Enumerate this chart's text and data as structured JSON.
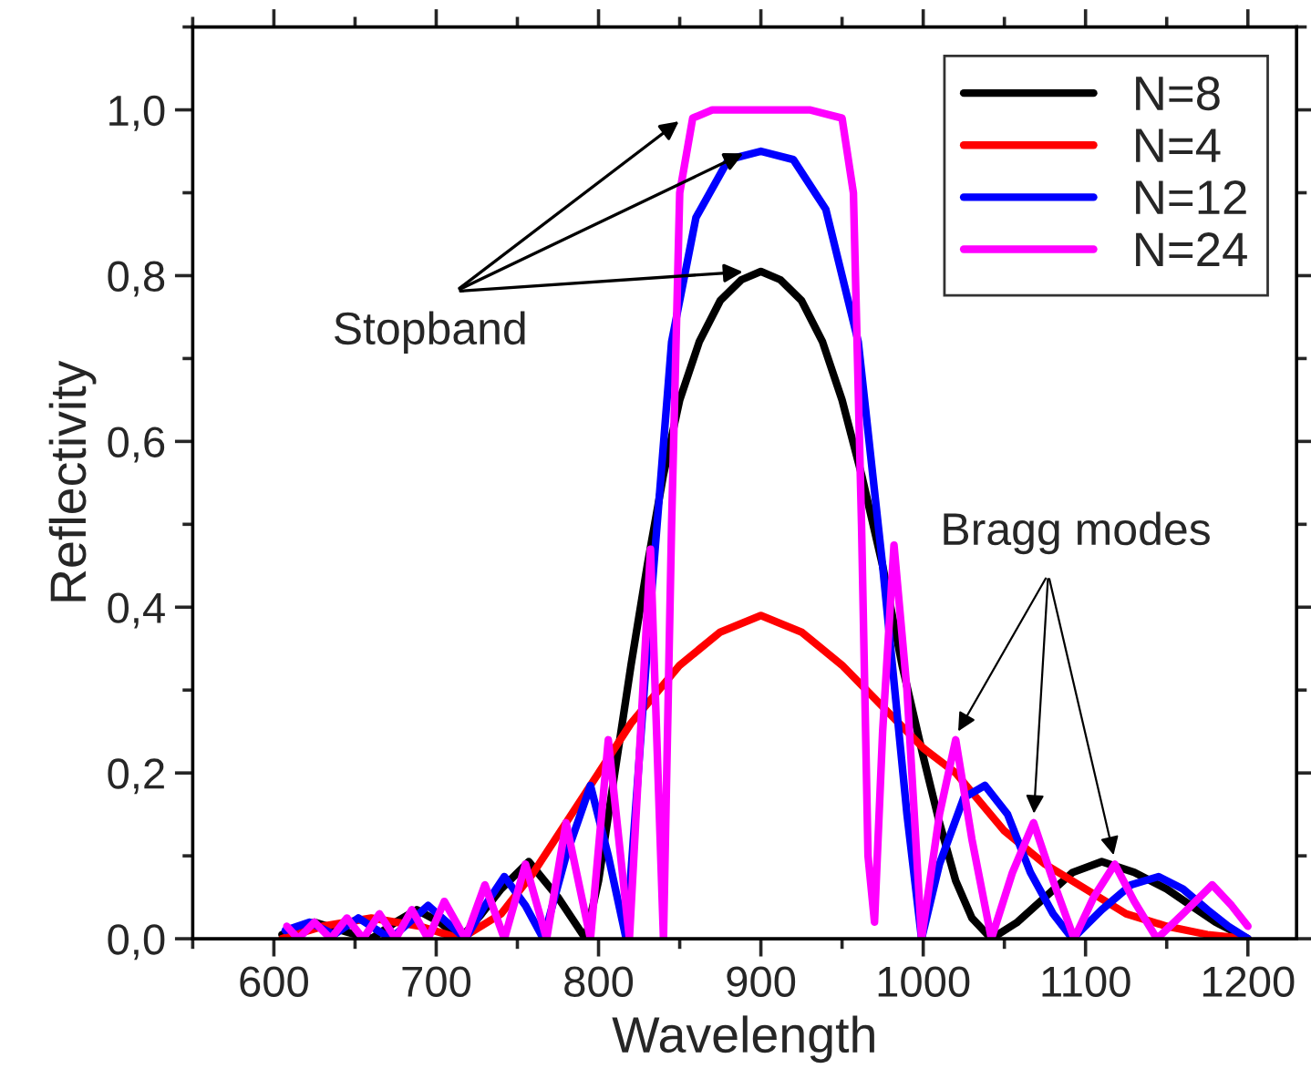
{
  "chart_data": {
    "type": "line",
    "xlabel": "Wavelength",
    "ylabel": "Reflectivity",
    "xlim": [
      550,
      1230
    ],
    "ylim": [
      0,
      1.1
    ],
    "xticks": [
      600,
      700,
      800,
      900,
      1000,
      1100,
      1200
    ],
    "yticks": [
      {
        "value": 0,
        "label": "0,0"
      },
      {
        "value": 0.2,
        "label": "0,2"
      },
      {
        "value": 0.4,
        "label": "0,4"
      },
      {
        "value": 0.6,
        "label": "0,6"
      },
      {
        "value": 0.8,
        "label": "0,8"
      },
      {
        "value": 1.0,
        "label": "1,0"
      }
    ],
    "grid": false,
    "legend": "top right",
    "marker": "none",
    "line_style": "solid",
    "annotations": [
      {
        "text": "Stopband",
        "x": 852,
        "y": 0.99
      },
      {
        "text": "Bragg modes",
        "x": 1020,
        "y": 0.245
      }
    ],
    "series": [
      {
        "name": "N=8",
        "color": "#000000",
        "x": [
          605,
          625,
          645,
          660,
          675,
          688,
          702,
          715,
          728,
          740,
          757,
          775,
          792,
          800,
          810,
          820,
          830,
          840,
          850,
          862,
          875,
          888,
          900,
          912,
          925,
          938,
          950,
          962,
          975,
          987,
          1000,
          1010,
          1020,
          1030,
          1042,
          1058,
          1075,
          1092,
          1110,
          1130,
          1150,
          1165,
          1180,
          1200
        ],
        "values": [
          0.005,
          0.02,
          0.008,
          0.0,
          0.02,
          0.035,
          0.02,
          0.0,
          0.03,
          0.06,
          0.093,
          0.05,
          0.0,
          0.07,
          0.2,
          0.33,
          0.45,
          0.56,
          0.65,
          0.72,
          0.77,
          0.795,
          0.805,
          0.795,
          0.77,
          0.72,
          0.65,
          0.56,
          0.45,
          0.33,
          0.22,
          0.14,
          0.07,
          0.025,
          0.0,
          0.02,
          0.05,
          0.08,
          0.093,
          0.08,
          0.06,
          0.04,
          0.02,
          0.0
        ]
      },
      {
        "name": "N=4",
        "color": "#ff0000",
        "x": [
          605,
          630,
          660,
          690,
          715,
          740,
          760,
          780,
          800,
          820,
          850,
          875,
          900,
          925,
          950,
          975,
          1000,
          1020,
          1050,
          1075,
          1100,
          1125,
          1150,
          1175,
          1200
        ],
        "values": [
          0.0,
          0.015,
          0.025,
          0.015,
          0.0,
          0.03,
          0.08,
          0.14,
          0.2,
          0.26,
          0.33,
          0.37,
          0.39,
          0.37,
          0.33,
          0.28,
          0.23,
          0.2,
          0.13,
          0.09,
          0.06,
          0.03,
          0.015,
          0.005,
          0.0
        ]
      },
      {
        "name": "N=12",
        "color": "#0000ff",
        "x": [
          607,
          622,
          637,
          652,
          672,
          695,
          718,
          730,
          742,
          755,
          766,
          780,
          795,
          806,
          817,
          830,
          845,
          860,
          880,
          900,
          920,
          940,
          960,
          975,
          990,
          999,
          1010,
          1025,
          1038,
          1052,
          1066,
          1080,
          1092,
          1110,
          1128,
          1145,
          1160,
          1175,
          1188,
          1200
        ],
        "values": [
          0.01,
          0.02,
          0.005,
          0.025,
          0.0,
          0.04,
          0.0,
          0.04,
          0.075,
          0.04,
          0.0,
          0.1,
          0.185,
          0.1,
          0.0,
          0.35,
          0.72,
          0.87,
          0.94,
          0.95,
          0.94,
          0.88,
          0.72,
          0.45,
          0.15,
          0.0,
          0.09,
          0.17,
          0.185,
          0.15,
          0.08,
          0.03,
          0.0,
          0.035,
          0.065,
          0.075,
          0.06,
          0.035,
          0.015,
          0.0
        ]
      },
      {
        "name": "N=24",
        "color": "#ff00ff",
        "x": [
          608,
          615,
          625,
          635,
          645,
          655,
          665,
          675,
          685,
          695,
          705,
          718,
          730,
          742,
          755,
          768,
          780,
          795,
          806,
          819,
          832,
          840,
          845,
          850,
          858,
          870,
          900,
          930,
          950,
          957,
          962,
          966,
          970,
          975,
          982,
          990,
          999,
          1010,
          1020,
          1030,
          1042,
          1055,
          1068,
          1080,
          1093,
          1105,
          1118,
          1130,
          1144,
          1160,
          1178,
          1190,
          1200
        ],
        "values": [
          0.015,
          0.0,
          0.02,
          0.0,
          0.025,
          0.0,
          0.03,
          0.0,
          0.035,
          0.0,
          0.045,
          0.0,
          0.065,
          0.0,
          0.09,
          0.0,
          0.14,
          0.0,
          0.24,
          0.0,
          0.47,
          0.0,
          0.5,
          0.9,
          0.99,
          1.0,
          1.0,
          1.0,
          0.99,
          0.9,
          0.5,
          0.1,
          0.02,
          0.25,
          0.475,
          0.3,
          0.0,
          0.15,
          0.24,
          0.12,
          0.0,
          0.08,
          0.14,
          0.07,
          0.0,
          0.05,
          0.09,
          0.045,
          0.0,
          0.03,
          0.065,
          0.04,
          0.015
        ]
      }
    ]
  }
}
